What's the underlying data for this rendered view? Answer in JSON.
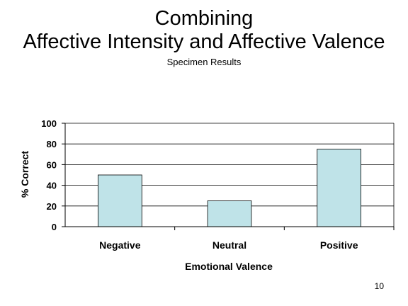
{
  "slide": {
    "title_line1": "Combining",
    "title_line2": "Affective Intensity and Affective Valence",
    "subtitle": "Specimen Results",
    "page_number": "10"
  },
  "colors": {
    "bar_fill": "#bfe3e8",
    "bar_stroke": "#000000",
    "gridline": "#000000"
  },
  "chart_data": {
    "type": "bar",
    "categories": [
      "Negative",
      "Neutral",
      "Positive"
    ],
    "values": [
      50,
      25,
      75
    ],
    "xlabel": "Emotional Valence",
    "ylabel": "% Correct",
    "ylim": [
      0,
      100
    ],
    "yticks": [
      0,
      20,
      40,
      60,
      80,
      100
    ],
    "grid": true,
    "legend": "none"
  }
}
